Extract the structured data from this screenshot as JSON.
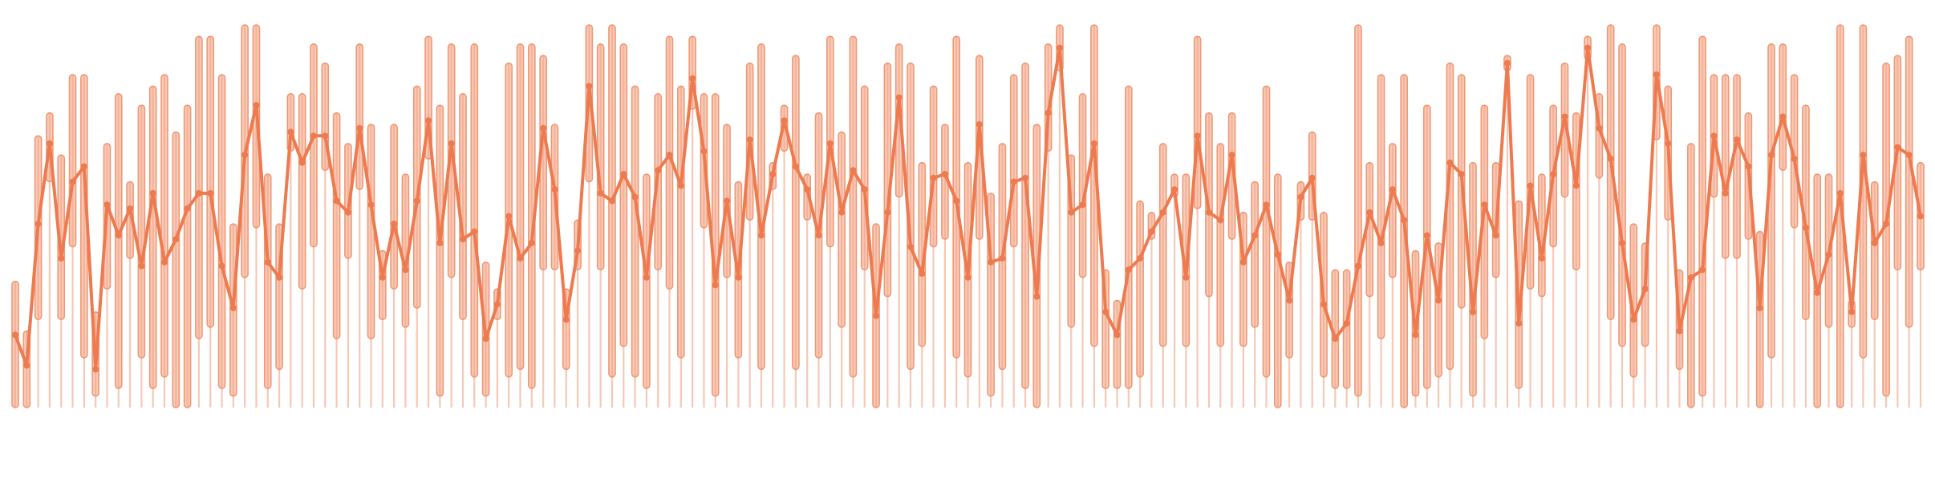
{
  "chart_data": {
    "type": "line",
    "variant": "line over floating range bars",
    "title": "",
    "xlabel": "",
    "ylabel": "",
    "axes_visible": false,
    "grid": false,
    "legend": "none",
    "ylim": [
      0,
      100
    ],
    "colors": {
      "line": "#ee7a4f",
      "range_fill": "#f6b9a0",
      "range_stroke": "#ef9874",
      "whisker": "#f6c8b6"
    },
    "ranges": [
      [
        0,
        33
      ],
      [
        0,
        20
      ],
      [
        23,
        71
      ],
      [
        59,
        77
      ],
      [
        23,
        66
      ],
      [
        42,
        87
      ],
      [
        13,
        87
      ],
      [
        3,
        25
      ],
      [
        31,
        69
      ],
      [
        5,
        82
      ],
      [
        39,
        59
      ],
      [
        13,
        79
      ],
      [
        5,
        84
      ],
      [
        8,
        87
      ],
      [
        0,
        72
      ],
      [
        0,
        79
      ],
      [
        18,
        97
      ],
      [
        21,
        97
      ],
      [
        5,
        87
      ],
      [
        3,
        48
      ],
      [
        34,
        100
      ],
      [
        47,
        100
      ],
      [
        5,
        61
      ],
      [
        10,
        48
      ],
      [
        67,
        82
      ],
      [
        31,
        82
      ],
      [
        42,
        95
      ],
      [
        62,
        90
      ],
      [
        18,
        77
      ],
      [
        39,
        69
      ],
      [
        57,
        95
      ],
      [
        18,
        74
      ],
      [
        23,
        41
      ],
      [
        31,
        74
      ],
      [
        21,
        61
      ],
      [
        26,
        84
      ],
      [
        65,
        97
      ],
      [
        3,
        79
      ],
      [
        34,
        95
      ],
      [
        23,
        82
      ],
      [
        8,
        95
      ],
      [
        3,
        38
      ],
      [
        23,
        31
      ],
      [
        8,
        90
      ],
      [
        10,
        95
      ],
      [
        5,
        95
      ],
      [
        36,
        92
      ],
      [
        36,
        74
      ],
      [
        10,
        31
      ],
      [
        36,
        49
      ],
      [
        59,
        100
      ],
      [
        36,
        95
      ],
      [
        8,
        100
      ],
      [
        16,
        95
      ],
      [
        8,
        84
      ],
      [
        5,
        61
      ],
      [
        36,
        82
      ],
      [
        31,
        97
      ],
      [
        13,
        84
      ],
      [
        78,
        97
      ],
      [
        47,
        82
      ],
      [
        3,
        82
      ],
      [
        34,
        74
      ],
      [
        13,
        59
      ],
      [
        49,
        90
      ],
      [
        10,
        95
      ],
      [
        57,
        64
      ],
      [
        67,
        79
      ],
      [
        10,
        92
      ],
      [
        49,
        61
      ],
      [
        13,
        77
      ],
      [
        42,
        97
      ],
      [
        21,
        72
      ],
      [
        8,
        97
      ],
      [
        36,
        84
      ],
      [
        0,
        48
      ],
      [
        29,
        90
      ],
      [
        55,
        95
      ],
      [
        10,
        90
      ],
      [
        16,
        64
      ],
      [
        42,
        84
      ],
      [
        44,
        74
      ],
      [
        13,
        97
      ],
      [
        8,
        64
      ],
      [
        44,
        92
      ],
      [
        3,
        56
      ],
      [
        10,
        69
      ],
      [
        42,
        87
      ],
      [
        5,
        90
      ],
      [
        0,
        74
      ],
      [
        67,
        95
      ],
      [
        88,
        100
      ],
      [
        21,
        66
      ],
      [
        34,
        82
      ],
      [
        16,
        100
      ],
      [
        5,
        36
      ],
      [
        5,
        28
      ],
      [
        5,
        84
      ],
      [
        8,
        54
      ],
      [
        44,
        51
      ],
      [
        16,
        69
      ],
      [
        55,
        61
      ],
      [
        16,
        61
      ],
      [
        52,
        97
      ],
      [
        29,
        77
      ],
      [
        16,
        69
      ],
      [
        44,
        77
      ],
      [
        16,
        51
      ],
      [
        21,
        59
      ],
      [
        8,
        84
      ],
      [
        0,
        61
      ],
      [
        13,
        38
      ],
      [
        49,
        59
      ],
      [
        49,
        72
      ],
      [
        8,
        51
      ],
      [
        5,
        36
      ],
      [
        5,
        36
      ],
      [
        3,
        100
      ],
      [
        29,
        64
      ],
      [
        18,
        87
      ],
      [
        34,
        69
      ],
      [
        0,
        87
      ],
      [
        3,
        41
      ],
      [
        5,
        79
      ],
      [
        8,
        43
      ],
      [
        10,
        90
      ],
      [
        26,
        87
      ],
      [
        3,
        64
      ],
      [
        18,
        79
      ],
      [
        34,
        64
      ],
      [
        88,
        92
      ],
      [
        5,
        54
      ],
      [
        31,
        87
      ],
      [
        29,
        61
      ],
      [
        42,
        79
      ],
      [
        55,
        90
      ],
      [
        36,
        77
      ],
      [
        91,
        97
      ],
      [
        60,
        82
      ],
      [
        23,
        100
      ],
      [
        16,
        95
      ],
      [
        8,
        48
      ],
      [
        16,
        43
      ],
      [
        70,
        100
      ],
      [
        49,
        84
      ],
      [
        10,
        36
      ],
      [
        0,
        69
      ],
      [
        3,
        97
      ],
      [
        55,
        87
      ],
      [
        39,
        87
      ],
      [
        39,
        87
      ],
      [
        44,
        77
      ],
      [
        0,
        46
      ],
      [
        13,
        95
      ],
      [
        62,
        95
      ],
      [
        47,
        87
      ],
      [
        23,
        79
      ],
      [
        0,
        61
      ],
      [
        21,
        61
      ],
      [
        0,
        100
      ],
      [
        21,
        28
      ],
      [
        13,
        100
      ],
      [
        23,
        59
      ],
      [
        3,
        90
      ],
      [
        36,
        92
      ],
      [
        21,
        97
      ],
      [
        36,
        64
      ]
    ],
    "values": [
      19,
      11,
      48,
      69,
      39,
      59,
      63,
      10,
      53,
      45,
      52,
      37,
      56,
      38,
      44,
      52,
      56,
      56,
      37,
      26,
      66,
      79,
      38,
      34,
      72,
      64,
      71,
      71,
      54,
      51,
      73,
      53,
      34,
      48,
      36,
      54,
      75,
      43,
      69,
      44,
      46,
      18,
      27,
      50,
      39,
      43,
      73,
      57,
      23,
      41,
      84,
      56,
      54,
      61,
      55,
      34,
      62,
      66,
      58,
      86,
      67,
      32,
      54,
      34,
      70,
      45,
      61,
      75,
      63,
      57,
      45,
      69,
      51,
      62,
      57,
      24,
      51,
      81,
      42,
      35,
      60,
      61,
      54,
      34,
      74,
      38,
      39,
      59,
      60,
      29,
      77,
      94,
      51,
      53,
      69,
      25,
      19,
      36,
      39,
      46,
      51,
      57,
      34,
      71,
      51,
      49,
      66,
      38,
      45,
      53,
      40,
      28,
      55,
      60,
      27,
      18,
      22,
      37,
      51,
      43,
      57,
      49,
      19,
      45,
      28,
      64,
      61,
      25,
      53,
      45,
      90,
      22,
      58,
      39,
      61,
      76,
      58,
      94,
      73,
      65,
      43,
      23,
      31,
      87,
      69,
      20,
      34,
      36,
      71,
      56,
      70,
      63,
      26,
      66,
      76,
      65,
      47,
      30,
      40,
      56,
      25,
      66,
      43,
      48,
      68,
      66,
      50
    ]
  }
}
